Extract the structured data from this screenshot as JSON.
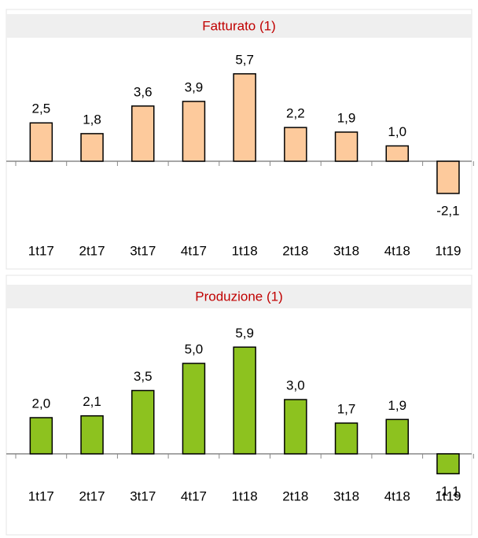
{
  "chart_data": [
    {
      "type": "bar",
      "title": "Fatturato (1)",
      "categories": [
        "1t17",
        "2t17",
        "3t17",
        "4t17",
        "1t18",
        "2t18",
        "3t18",
        "4t18",
        "1t19"
      ],
      "values": [
        2.5,
        1.8,
        3.6,
        3.9,
        5.7,
        2.2,
        1.9,
        1.0,
        -2.1
      ],
      "value_labels": [
        "2,5",
        "1,8",
        "3,6",
        "3,9",
        "5,7",
        "2,2",
        "1,9",
        "1,0",
        "-2,1"
      ],
      "color": "#fdca9c",
      "negative_label_color": "#e00000",
      "ylim": [
        -3,
        7
      ]
    },
    {
      "type": "bar",
      "title": "Produzione (1)",
      "categories": [
        "1t17",
        "2t17",
        "3t17",
        "4t17",
        "1t18",
        "2t18",
        "3t18",
        "4t18",
        "1t19"
      ],
      "values": [
        2.0,
        2.1,
        3.5,
        5.0,
        5.9,
        3.0,
        1.7,
        1.9,
        -1.1
      ],
      "value_labels": [
        "2,0",
        "2,1",
        "3,5",
        "5,0",
        "5,9",
        "3,0",
        "1,7",
        "1,9",
        "-1,1"
      ],
      "color": "#8dc21f",
      "negative_label_color": "#e00000",
      "ylim": [
        -2,
        7
      ]
    }
  ]
}
